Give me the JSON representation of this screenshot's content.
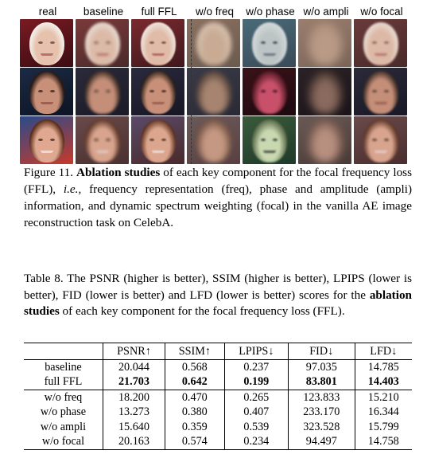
{
  "figure": {
    "columns": [
      "real",
      "baseline",
      "full FFL",
      "w/o freq",
      "w/o phase",
      "w/o ampli",
      "w/o focal"
    ],
    "caption": {
      "label": "Figure 11.",
      "bold": "Ablation studies",
      "text1": " of each key component for the focal frequency loss (FFL), ",
      "ie": "i.e.",
      "text2": ", frequency representation (freq), phase and amplitude (ampli) information, and dynamic spectrum weighting (focal) in the vanilla AE image reconstruction task on CelebA."
    }
  },
  "table": {
    "caption": {
      "text1": "Table 8. The PSNR (higher is better), SSIM (higher is better), LPIPS (lower is better), FID (lower is better) and LFD (lower is better) scores for the ",
      "bold": "ablation studies",
      "text2": " of each key component for the focal frequency loss (FFL)."
    },
    "headers": [
      "PSNR↑",
      "SSIM↑",
      "LPIPS↓",
      "FID↓",
      "LFD↓"
    ],
    "rows": [
      {
        "method": "baseline",
        "values": [
          "20.044",
          "0.568",
          "0.237",
          "97.035",
          "14.785"
        ]
      },
      {
        "method": "full FFL",
        "values": [
          "21.703",
          "0.642",
          "0.199",
          "83.801",
          "14.403"
        ]
      },
      {
        "method": "w/o freq",
        "values": [
          "18.200",
          "0.470",
          "0.265",
          "123.833",
          "15.210"
        ]
      },
      {
        "method": "w/o phase",
        "values": [
          "13.273",
          "0.380",
          "0.407",
          "233.170",
          "16.344"
        ]
      },
      {
        "method": "w/o ampli",
        "values": [
          "15.640",
          "0.359",
          "0.539",
          "323.528",
          "15.799"
        ]
      },
      {
        "method": "w/o focal",
        "values": [
          "20.163",
          "0.574",
          "0.234",
          "94.497",
          "14.758"
        ]
      }
    ]
  }
}
